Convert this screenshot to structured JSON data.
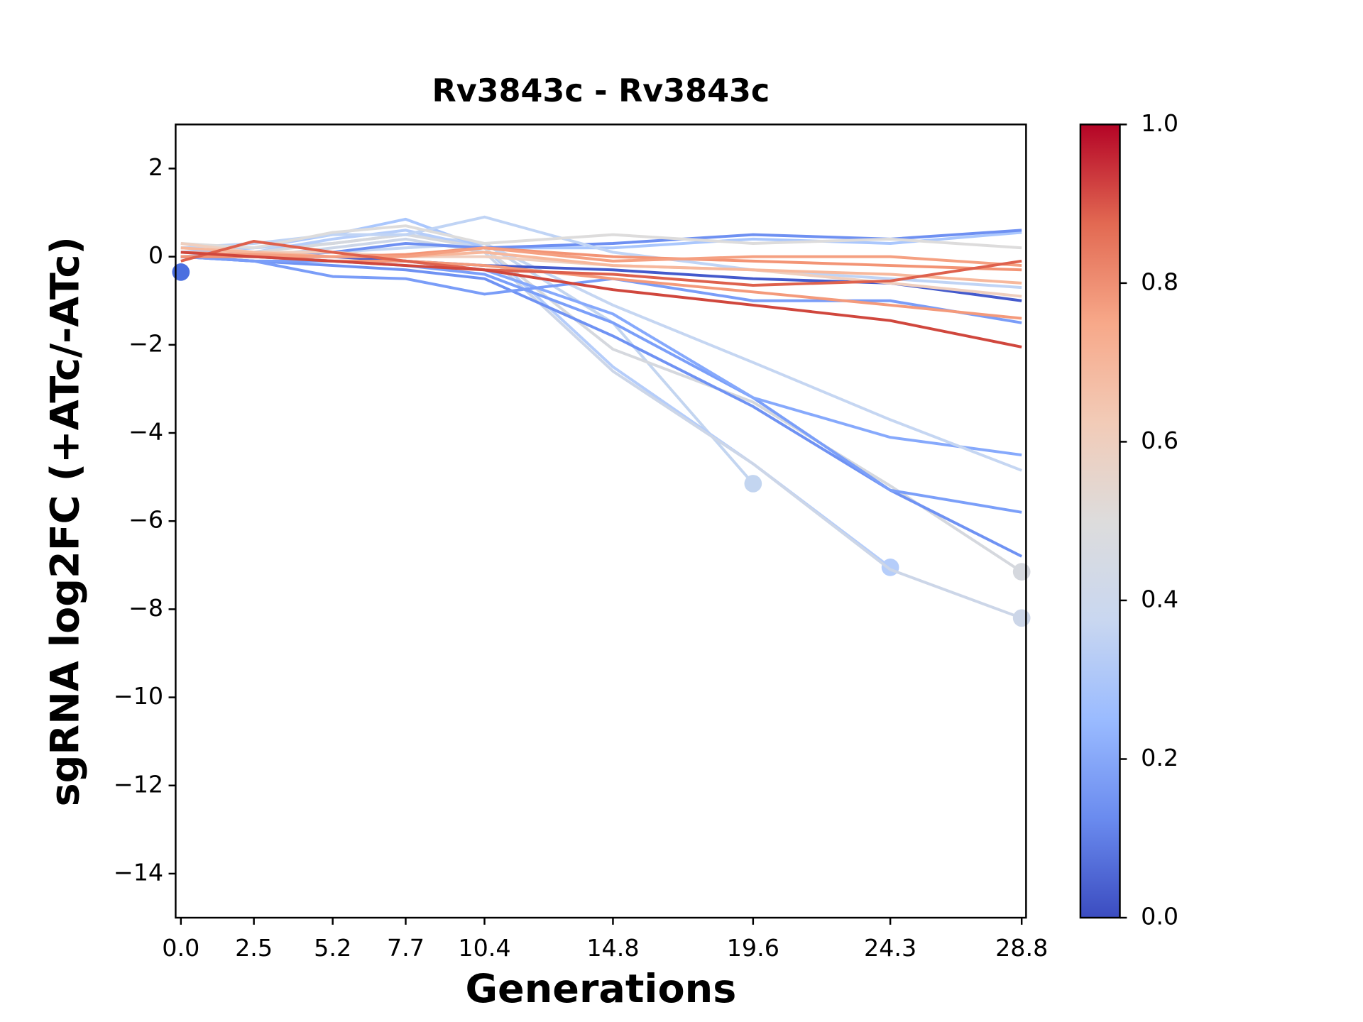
{
  "chart_data": {
    "type": "line",
    "title": "Rv3843c - Rv3843c",
    "xlabel": "Generations",
    "ylabel": "sgRNA log2FC (+ATc/-ATc)",
    "x": [
      0,
      2.5,
      5.2,
      7.7,
      10.4,
      14.8,
      19.6,
      24.3,
      28.8
    ],
    "xlim": [
      -0.18,
      28.95
    ],
    "xticks": [
      {
        "value": 0,
        "label": "0.0"
      },
      2.5,
      5.2,
      7.7,
      10.4,
      14.8,
      19.6,
      24.3,
      28.8
    ],
    "ylim": [
      -15,
      3
    ],
    "yticks": [
      {
        "value": -14,
        "label": "−14"
      },
      {
        "value": -12,
        "label": "−12"
      },
      {
        "value": -10,
        "label": "−10"
      },
      {
        "value": -8,
        "label": "−8"
      },
      {
        "value": -6,
        "label": "−6"
      },
      {
        "value": -4,
        "label": "−4"
      },
      {
        "value": -2,
        "label": "−2"
      },
      0,
      2
    ],
    "series": [
      {
        "color": "#c3d5f0",
        "marker": true,
        "values": [
          0.1,
          0.2,
          0.3,
          0.5,
          0.3,
          -1.5,
          -5.15,
          null,
          null
        ]
      },
      {
        "color": "#b5cdfa",
        "marker": true,
        "values": [
          0,
          0.1,
          0.4,
          0.6,
          0.2,
          -2.5,
          -4.7,
          -7.05,
          null
        ]
      },
      {
        "color": "#d5d8de",
        "marker": true,
        "values": [
          0.2,
          0.1,
          0.3,
          0.5,
          0.2,
          -2.1,
          -3.3,
          -5.2,
          -7.15
        ]
      },
      {
        "color": "#ccd6e8",
        "marker": true,
        "values": [
          0.1,
          0,
          0.2,
          0.4,
          0.1,
          -2.6,
          -4.7,
          -7.1,
          -8.2
        ]
      },
      {
        "color": "#6f92f3",
        "values": [
          0,
          -0.1,
          -0.2,
          -0.3,
          -0.5,
          -1.8,
          -3.4,
          -5.3,
          -6.8
        ]
      },
      {
        "color": "#7b9ff9",
        "values": [
          0,
          -0.1,
          -0.1,
          -0.2,
          -0.4,
          -1.5,
          -3.2,
          -5.3,
          -5.8
        ]
      },
      {
        "color": "#86a9fc",
        "values": [
          0,
          0,
          -0.1,
          -0.1,
          -0.3,
          -1.3,
          -3.2,
          -4.1,
          -4.5
        ]
      },
      {
        "color": "#c5d6f2",
        "values": [
          0,
          0,
          0.1,
          0.2,
          0.3,
          -1.1,
          -2.4,
          -3.7,
          -4.85
        ]
      },
      {
        "color": "#7a9df8",
        "values": [
          0,
          -0.1,
          -0.45,
          -0.5,
          -0.85,
          -0.5,
          -1.0,
          -1.0,
          -1.5
        ]
      },
      {
        "color": "#aac7fd",
        "values": [
          0.1,
          0.2,
          0.5,
          0.85,
          0.2,
          0.2,
          0.4,
          0.3,
          0.55
        ]
      },
      {
        "color": "#6e90f2",
        "values": [
          0,
          0,
          0.1,
          0.3,
          0.2,
          0.3,
          0.5,
          0.4,
          0.6
        ]
      },
      {
        "color": "#445acc",
        "values": [
          0,
          0,
          0,
          -0.1,
          -0.2,
          -0.3,
          -0.5,
          -0.6,
          -1.0
        ]
      },
      {
        "color": "#c0d4f5",
        "values": [
          0.2,
          0.3,
          0.5,
          0.5,
          0.9,
          0.1,
          -0.3,
          -0.5,
          -0.7
        ]
      },
      {
        "color": "#dddcdc",
        "values": [
          0.3,
          0.2,
          0.55,
          0.7,
          0.3,
          0.5,
          0.3,
          0.4,
          0.2
        ]
      },
      {
        "color": "#efcfbf",
        "values": [
          0.3,
          0.1,
          0.1,
          0,
          0,
          -0.2,
          -0.3,
          -0.6,
          -0.9
        ]
      },
      {
        "color": "#f7b89c",
        "values": [
          0.2,
          0.1,
          0,
          0,
          0.1,
          -0.2,
          -0.3,
          -0.4,
          -0.6
        ]
      },
      {
        "color": "#f49a7b",
        "values": [
          0,
          0,
          -0.1,
          -0.1,
          -0.2,
          -0.5,
          -0.8,
          -1.1,
          -1.4
        ]
      },
      {
        "color": "#f39475",
        "values": [
          0,
          0,
          0,
          0.05,
          0.2,
          0,
          -0.1,
          -0.2,
          -0.3
        ]
      },
      {
        "color": "#f5a081",
        "values": [
          0.1,
          0.05,
          0,
          0,
          0.2,
          -0.1,
          0,
          0,
          -0.2
        ]
      },
      {
        "color": "#de614d",
        "values": [
          -0.1,
          0.35,
          0.1,
          -0.1,
          -0.3,
          -0.4,
          -0.65,
          -0.55,
          -0.1
        ]
      },
      {
        "color": "#d0473d",
        "values": [
          0.1,
          0,
          -0.1,
          -0.2,
          -0.3,
          -0.75,
          -1.1,
          -1.45,
          -2.05
        ]
      },
      {
        "color": "#4b6fe0",
        "marker": true,
        "values": [
          -0.35,
          null,
          null,
          null,
          null,
          null,
          null,
          null,
          null
        ]
      }
    ],
    "colorbar": {
      "lim": [
        0,
        1
      ],
      "ticks": [
        {
          "value": 0,
          "label": "0.0"
        },
        0.2,
        0.4,
        0.6,
        0.8,
        {
          "value": 1,
          "label": "1.0"
        }
      ],
      "colors": [
        "#3b4cc0",
        "#6a8bef",
        "#9abbff",
        "#c9d7f0",
        "#dddcdc",
        "#f2cbb7",
        "#f7a889",
        "#e26952",
        "#b40426"
      ]
    }
  }
}
